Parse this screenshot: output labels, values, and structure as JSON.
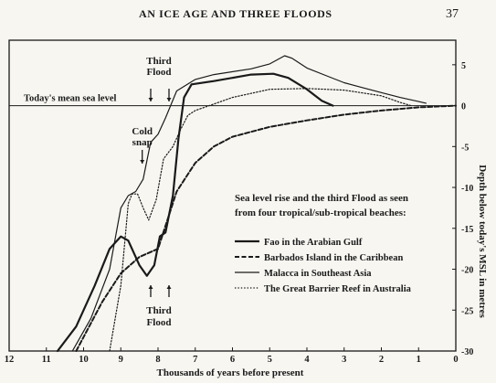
{
  "header": {
    "running_head": "AN ICE AGE AND THREE FLOODS",
    "page_number": "37"
  },
  "colors": {
    "ink": "#1a1a1a",
    "paper": "#f7f6f1"
  },
  "chart_data": {
    "type": "line",
    "title": "Sea level rise and the third Flood as seen from four tropical/sub-tropical beaches:",
    "title_lines": [
      "Sea level rise and the third Flood as seen",
      "from four tropical/sub-tropical beaches:"
    ],
    "xlabel": "Thousands of years before present",
    "ylabel": "Depth below today's MSL in metres",
    "xlim": [
      12,
      0
    ],
    "ylim": [
      -30,
      8
    ],
    "x_ticks": [
      12,
      11,
      10,
      9,
      8,
      7,
      6,
      5,
      4,
      3,
      2,
      1,
      0
    ],
    "y_ticks": [
      5,
      0,
      -5,
      -10,
      -15,
      -20,
      -25,
      -30
    ],
    "grid": false,
    "legend_position": "center-right",
    "reference_line": {
      "label": "Today's mean sea level",
      "y": 0
    },
    "annotations": [
      {
        "text_lines": [
          "Third",
          "Flood"
        ],
        "x": 8.0,
        "position": "top",
        "arrow": "down"
      },
      {
        "text_lines": [
          "Third",
          "Flood"
        ],
        "x": 8.0,
        "position": "bottom",
        "arrow": "up"
      },
      {
        "text_lines": [
          "Cold",
          "snap"
        ],
        "x": 8.4,
        "position": "middle",
        "arrow": "down"
      }
    ],
    "series": [
      {
        "name": "Fao in the Arabian Gulf",
        "style": "solid-thick",
        "x": [
          10.7,
          10.2,
          9.7,
          9.3,
          9.0,
          8.8,
          8.5,
          8.3,
          8.1,
          7.95,
          7.8,
          7.6,
          7.45,
          7.3,
          7.1,
          6.5,
          5.5,
          4.9,
          4.5,
          4.0,
          3.6,
          3.3
        ],
        "y": [
          -30,
          -27,
          -22,
          -17.5,
          -16,
          -16.5,
          -19.5,
          -20.8,
          -19.5,
          -16,
          -15.5,
          -11,
          -4,
          1,
          2.6,
          3.0,
          3.8,
          3.9,
          3.4,
          2.0,
          0.6,
          0
        ]
      },
      {
        "name": "Barbados Island in the Caribbean",
        "style": "dashed-thick",
        "x": [
          10.2,
          9.5,
          9.0,
          8.5,
          8.0,
          7.5,
          7.0,
          6.5,
          6.0,
          5.0,
          4.0,
          3.0,
          2.0,
          1.0,
          0.0
        ],
        "y": [
          -30,
          -24,
          -20.5,
          -18.5,
          -17.5,
          -10.5,
          -7.0,
          -5.0,
          -3.8,
          -2.6,
          -1.8,
          -1.1,
          -0.6,
          -0.2,
          0
        ]
      },
      {
        "name": "Malacca in Southeast Asia",
        "style": "solid-thin",
        "x": [
          10.3,
          9.8,
          9.3,
          9.0,
          8.8,
          8.6,
          8.4,
          8.2,
          8.0,
          7.8,
          7.5,
          7.0,
          6.5,
          5.5,
          5.0,
          4.6,
          4.4,
          4.0,
          3.5,
          3.0,
          2.5,
          2.0,
          1.5,
          1.0,
          0.8
        ],
        "y": [
          -30,
          -26,
          -20,
          -12.5,
          -11,
          -10.5,
          -9,
          -4.5,
          -3.5,
          -1.5,
          1.8,
          3.2,
          3.8,
          4.5,
          5.1,
          6.1,
          5.8,
          4.6,
          3.7,
          2.8,
          2.2,
          1.6,
          1.0,
          0.5,
          0.3
        ]
      },
      {
        "name": "The Great Barrier Reef in Australia",
        "style": "dotted",
        "x": [
          9.3,
          9.0,
          8.8,
          8.7,
          8.55,
          8.4,
          8.25,
          8.05,
          7.85,
          7.6,
          7.4,
          7.2,
          7.0,
          6.5,
          6.0,
          5.0,
          4.0,
          3.0,
          2.0,
          1.5,
          1.2
        ],
        "y": [
          -30,
          -22,
          -12,
          -10.8,
          -10.8,
          -12.5,
          -14,
          -11.5,
          -6.5,
          -5.0,
          -3.0,
          -1.2,
          -0.6,
          0.2,
          1.0,
          2.0,
          2.1,
          1.9,
          1.2,
          0.4,
          0
        ]
      }
    ]
  }
}
